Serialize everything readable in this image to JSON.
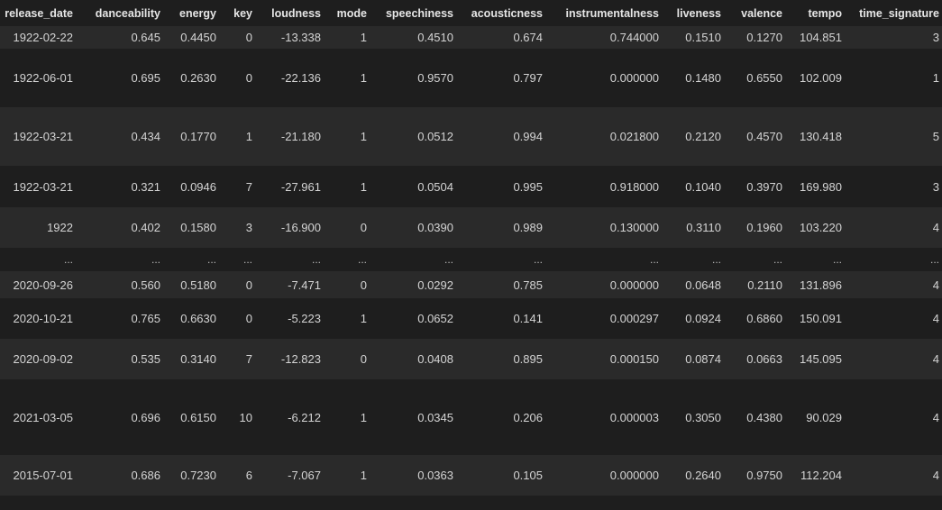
{
  "columns": [
    "release_date",
    "danceability",
    "energy",
    "key",
    "loudness",
    "mode",
    "speechiness",
    "acousticness",
    "instrumentalness",
    "liveness",
    "valence",
    "tempo",
    "time_signature"
  ],
  "rows": [
    [
      "1922-02-22",
      "0.645",
      "0.4450",
      "0",
      "-13.338",
      "1",
      "0.4510",
      "0.674",
      "0.744000",
      "0.1510",
      "0.1270",
      "104.851",
      "3"
    ],
    [
      "1922-06-01",
      "0.695",
      "0.2630",
      "0",
      "-22.136",
      "1",
      "0.9570",
      "0.797",
      "0.000000",
      "0.1480",
      "0.6550",
      "102.009",
      "1"
    ],
    [
      "1922-03-21",
      "0.434",
      "0.1770",
      "1",
      "-21.180",
      "1",
      "0.0512",
      "0.994",
      "0.021800",
      "0.2120",
      "0.4570",
      "130.418",
      "5"
    ],
    [
      "1922-03-21",
      "0.321",
      "0.0946",
      "7",
      "-27.961",
      "1",
      "0.0504",
      "0.995",
      "0.918000",
      "0.1040",
      "0.3970",
      "169.980",
      "3"
    ],
    [
      "1922",
      "0.402",
      "0.1580",
      "3",
      "-16.900",
      "0",
      "0.0390",
      "0.989",
      "0.130000",
      "0.3110",
      "0.1960",
      "103.220",
      "4"
    ],
    [
      "...",
      "...",
      "...",
      "...",
      "...",
      "...",
      "...",
      "...",
      "...",
      "...",
      "...",
      "...",
      "..."
    ],
    [
      "2020-09-26",
      "0.560",
      "0.5180",
      "0",
      "-7.471",
      "0",
      "0.0292",
      "0.785",
      "0.000000",
      "0.0648",
      "0.2110",
      "131.896",
      "4"
    ],
    [
      "2020-10-21",
      "0.765",
      "0.6630",
      "0",
      "-5.223",
      "1",
      "0.0652",
      "0.141",
      "0.000297",
      "0.0924",
      "0.6860",
      "150.091",
      "4"
    ],
    [
      "2020-09-02",
      "0.535",
      "0.3140",
      "7",
      "-12.823",
      "0",
      "0.0408",
      "0.895",
      "0.000150",
      "0.0874",
      "0.0663",
      "145.095",
      "4"
    ],
    [
      "2021-03-05",
      "0.696",
      "0.6150",
      "10",
      "-6.212",
      "1",
      "0.0345",
      "0.206",
      "0.000003",
      "0.3050",
      "0.4380",
      "90.029",
      "4"
    ],
    [
      "2015-07-01",
      "0.686",
      "0.7230",
      "6",
      "-7.067",
      "1",
      "0.0363",
      "0.105",
      "0.000000",
      "0.2640",
      "0.9750",
      "112.204",
      "4"
    ]
  ]
}
